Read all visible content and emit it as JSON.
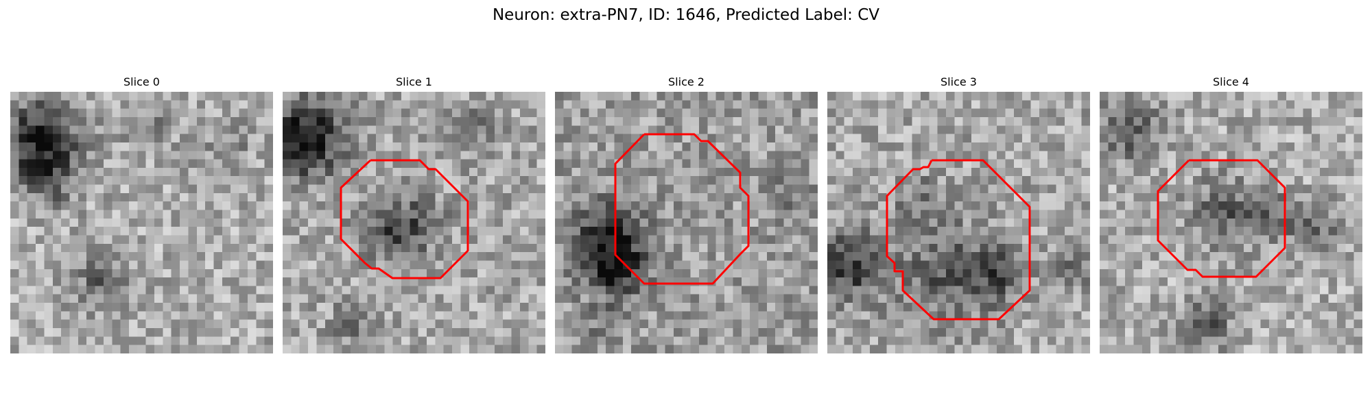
{
  "figure": {
    "title": "Neuron: extra-PN7, ID: 1646, Predicted Label: CV"
  },
  "colors": {
    "contour": "#ff0000",
    "background": "#ffffff"
  },
  "slices": [
    {
      "title": "Slice 0"
    },
    {
      "title": "Slice 1"
    },
    {
      "title": "Slice 2"
    },
    {
      "title": "Slice 3"
    },
    {
      "title": "Slice 4"
    }
  ]
}
